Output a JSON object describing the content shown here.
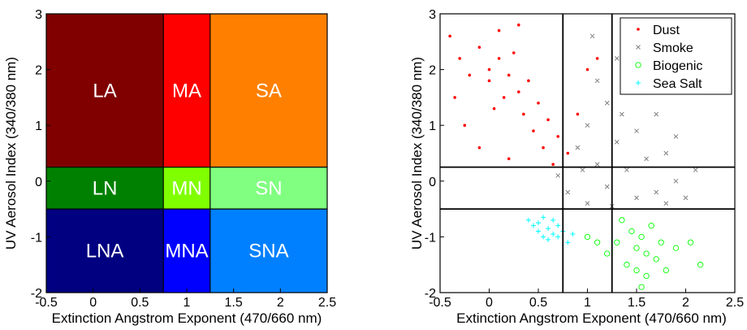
{
  "chart_data": [
    {
      "type": "heatmap",
      "xlabel": "Extinction Angstrom Exponent (470/660 nm)",
      "ylabel": "UV Aerosol Index (340/380 nm)",
      "xlim": [
        -0.5,
        2.5
      ],
      "ylim": [
        -2,
        3
      ],
      "xticks": [
        "-0.5",
        "0",
        "0.5",
        "1",
        "1.5",
        "2",
        "2.5"
      ],
      "yticks": [
        "-2",
        "-1",
        "0",
        "1",
        "2",
        "3"
      ],
      "x_boundaries": [
        0.75,
        1.25
      ],
      "y_boundaries": [
        -0.5,
        0.25
      ],
      "grid": false,
      "regions": [
        {
          "label": "LA",
          "x": [
            -0.5,
            0.75
          ],
          "y": [
            0.25,
            3
          ],
          "color": "#800000"
        },
        {
          "label": "MA",
          "x": [
            0.75,
            1.25
          ],
          "y": [
            0.25,
            3
          ],
          "color": "#ff0000"
        },
        {
          "label": "SA",
          "x": [
            1.25,
            2.5
          ],
          "y": [
            0.25,
            3
          ],
          "color": "#ff8000"
        },
        {
          "label": "LN",
          "x": [
            -0.5,
            0.75
          ],
          "y": [
            -0.5,
            0.25
          ],
          "color": "#008000"
        },
        {
          "label": "MN",
          "x": [
            0.75,
            1.25
          ],
          "y": [
            -0.5,
            0.25
          ],
          "color": "#80ff00"
        },
        {
          "label": "SN",
          "x": [
            1.25,
            2.5
          ],
          "y": [
            -0.5,
            0.25
          ],
          "color": "#80ff80"
        },
        {
          "label": "LNA",
          "x": [
            -0.5,
            0.75
          ],
          "y": [
            -2,
            -0.5
          ],
          "color": "#000080"
        },
        {
          "label": "MNA",
          "x": [
            0.75,
            1.25
          ],
          "y": [
            -2,
            -0.5
          ],
          "color": "#0000ff"
        },
        {
          "label": "SNA",
          "x": [
            1.25,
            2.5
          ],
          "y": [
            -2,
            -0.5
          ],
          "color": "#0080ff"
        }
      ]
    },
    {
      "type": "scatter",
      "xlabel": "Extinction Angstrom Exponent (470/660 nm)",
      "ylabel": "UV Aerosol Index (340/380 nm)",
      "xlim": [
        -0.5,
        2.5
      ],
      "ylim": [
        -2,
        3
      ],
      "xticks": [
        "-0.5",
        "0",
        "0.5",
        "1",
        "1.5",
        "2",
        "2.5"
      ],
      "yticks": [
        "-2",
        "-1",
        "0",
        "1",
        "2",
        "3"
      ],
      "vlines": [
        0.75,
        1.25
      ],
      "hlines": [
        -0.5,
        0.25
      ],
      "grid": false,
      "legend": "top-right",
      "series": [
        {
          "name": "Dust",
          "marker": "dot",
          "color": "#ff0000",
          "points": [
            [
              -0.4,
              2.6
            ],
            [
              -0.3,
              2.2
            ],
            [
              -0.2,
              1.9
            ],
            [
              -0.1,
              2.4
            ],
            [
              0,
              1.8
            ],
            [
              0,
              2.0
            ],
            [
              0.1,
              2.2
            ],
            [
              0.15,
              1.5
            ],
            [
              0.2,
              1.9
            ],
            [
              0.25,
              2.3
            ],
            [
              0.3,
              1.6
            ],
            [
              0.35,
              1.2
            ],
            [
              0.4,
              1.8
            ],
            [
              0.45,
              0.9
            ],
            [
              0.5,
              1.4
            ],
            [
              0.55,
              0.6
            ],
            [
              0.6,
              1.1
            ],
            [
              0.65,
              0.3
            ],
            [
              0.7,
              0.8
            ],
            [
              0.8,
              0.5
            ],
            [
              0.9,
              1.2
            ],
            [
              1.0,
              2.0
            ],
            [
              1.1,
              2.2
            ],
            [
              -0.25,
              1.0
            ],
            [
              -0.1,
              0.6
            ],
            [
              0.05,
              1.3
            ],
            [
              0.2,
              0.4
            ],
            [
              0.1,
              2.7
            ],
            [
              -0.35,
              1.5
            ],
            [
              0.3,
              2.8
            ]
          ]
        },
        {
          "name": "Smoke",
          "marker": "x",
          "color": "#808080",
          "points": [
            [
              0.7,
              0.1
            ],
            [
              0.8,
              -0.2
            ],
            [
              0.9,
              0.6
            ],
            [
              1.0,
              1.0
            ],
            [
              1.0,
              -0.4
            ],
            [
              1.1,
              0.3
            ],
            [
              1.2,
              1.4
            ],
            [
              1.2,
              -0.1
            ],
            [
              1.3,
              0.7
            ],
            [
              1.3,
              2.2
            ],
            [
              1.4,
              0.2
            ],
            [
              1.4,
              1.6
            ],
            [
              1.5,
              -0.3
            ],
            [
              1.5,
              0.9
            ],
            [
              1.6,
              0.4
            ],
            [
              1.6,
              1.9
            ],
            [
              1.7,
              -0.2
            ],
            [
              1.7,
              1.2
            ],
            [
              1.8,
              0.5
            ],
            [
              1.8,
              -0.4
            ],
            [
              1.9,
              0.0
            ],
            [
              1.9,
              0.8
            ],
            [
              2.0,
              -0.3
            ],
            [
              2.1,
              0.2
            ],
            [
              1.1,
              1.8
            ],
            [
              1.35,
              1.2
            ],
            [
              0.95,
              0.2
            ],
            [
              1.25,
              -0.45
            ],
            [
              1.55,
              2.4
            ],
            [
              1.05,
              2.6
            ]
          ]
        },
        {
          "name": "Biogenic",
          "marker": "circle",
          "color": "#00ff00",
          "points": [
            [
              1.0,
              -1.0
            ],
            [
              1.1,
              -1.1
            ],
            [
              1.2,
              -1.3
            ],
            [
              1.3,
              -1.1
            ],
            [
              1.4,
              -1.5
            ],
            [
              1.45,
              -0.9
            ],
            [
              1.5,
              -1.2
            ],
            [
              1.5,
              -1.6
            ],
            [
              1.55,
              -1.0
            ],
            [
              1.55,
              -1.9
            ],
            [
              1.6,
              -1.3
            ],
            [
              1.6,
              -1.7
            ],
            [
              1.65,
              -0.8
            ],
            [
              1.7,
              -1.4
            ],
            [
              1.75,
              -1.1
            ],
            [
              1.8,
              -1.6
            ],
            [
              1.9,
              -1.2
            ],
            [
              2.05,
              -1.1
            ],
            [
              2.15,
              -1.5
            ],
            [
              1.35,
              -0.7
            ]
          ]
        },
        {
          "name": "Sea Salt",
          "marker": "plus",
          "color": "#00ffff",
          "points": [
            [
              0.4,
              -0.7
            ],
            [
              0.45,
              -0.8
            ],
            [
              0.5,
              -0.75
            ],
            [
              0.5,
              -0.9
            ],
            [
              0.55,
              -1.0
            ],
            [
              0.55,
              -0.65
            ],
            [
              0.6,
              -0.85
            ],
            [
              0.6,
              -1.05
            ],
            [
              0.65,
              -0.7
            ],
            [
              0.65,
              -0.95
            ],
            [
              0.7,
              -0.8
            ],
            [
              0.7,
              -1.0
            ],
            [
              0.75,
              -0.9
            ],
            [
              0.8,
              -1.1
            ],
            [
              0.85,
              -0.95
            ]
          ]
        }
      ]
    }
  ]
}
